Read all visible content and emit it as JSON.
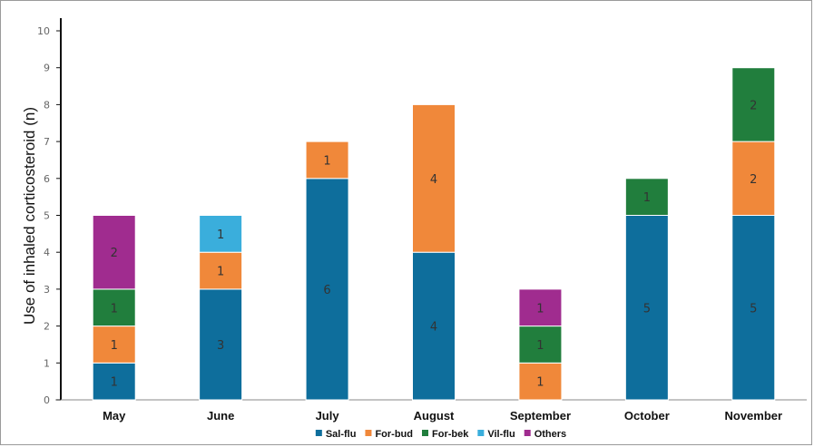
{
  "chart_data": {
    "type": "bar",
    "stacked": true,
    "categories": [
      "May",
      "June",
      "July",
      "August",
      "September",
      "October",
      "November"
    ],
    "series": [
      {
        "name": "Sal-flu",
        "color": "#0e6e9c",
        "values": [
          1,
          3,
          6,
          4,
          0,
          5,
          5
        ]
      },
      {
        "name": "For-bud",
        "color": "#f0883a",
        "values": [
          1,
          1,
          1,
          4,
          1,
          0,
          2
        ]
      },
      {
        "name": "For-bek",
        "color": "#217e3d",
        "values": [
          1,
          0,
          0,
          0,
          1,
          1,
          2
        ]
      },
      {
        "name": "Vil-flu",
        "color": "#3aaedc",
        "values": [
          0,
          1,
          0,
          0,
          0,
          0,
          0
        ]
      },
      {
        "name": "Others",
        "color": "#a02c8f",
        "values": [
          2,
          0,
          0,
          0,
          1,
          0,
          0
        ]
      }
    ],
    "ylabel": "Use of inhaled corticosteroid (n)",
    "xlabel": "",
    "ylim": [
      0,
      10
    ],
    "yticks": [
      0,
      1,
      2,
      3,
      4,
      5,
      6,
      7,
      8,
      9,
      10
    ],
    "legend_position": "bottom",
    "grid": false
  }
}
